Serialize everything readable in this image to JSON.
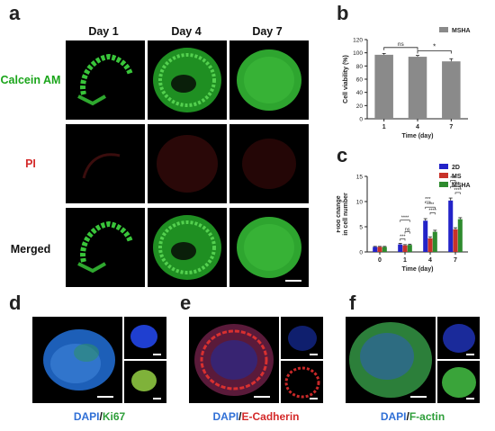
{
  "panels": {
    "a": "a",
    "b": "b",
    "c": "c",
    "d": "d",
    "e": "e",
    "f": "f"
  },
  "panel_a": {
    "days": [
      "Day 1",
      "Day 4",
      "Day 7"
    ],
    "rows": [
      {
        "label": "Calcein AM",
        "color": "#1aa51a"
      },
      {
        "label": "PI",
        "color": "#d42a2a"
      },
      {
        "label": "Merged",
        "color": "#111111"
      }
    ]
  },
  "captions": {
    "d": {
      "part1": "DAPI",
      "sep": "/",
      "part2": "Ki67",
      "color2": "#2e9e3a"
    },
    "e": {
      "part1": "DAPI",
      "sep": "/",
      "part2": "E-Cadherin",
      "color2": "#d42a2a"
    },
    "f": {
      "part1": "DAPI",
      "sep": "/",
      "part2": "F-actin",
      "color2": "#2e9e3a"
    }
  },
  "colors": {
    "dapi": "#2f6fd6",
    "green": "#2e9e3a",
    "red": "#d42a2a"
  },
  "chart_data": [
    {
      "panel": "b",
      "type": "bar",
      "categories": [
        "1",
        "4",
        "7"
      ],
      "series": [
        {
          "name": "MSHA",
          "values": [
            97,
            94,
            87
          ],
          "errors": [
            2,
            2,
            4
          ],
          "color": "#8a8a8a"
        }
      ],
      "xlabel": "Time (day)",
      "ylabel": "Cell viability (%)",
      "ylim": [
        0,
        120
      ],
      "yticks": [
        0,
        20,
        40,
        60,
        80,
        100,
        120
      ],
      "legend": "top-right",
      "annotations": [
        {
          "between": [
            "1",
            "4"
          ],
          "text": "ns"
        },
        {
          "between": [
            "4",
            "7"
          ],
          "text": "*"
        }
      ]
    },
    {
      "panel": "c",
      "type": "bar",
      "categories": [
        "0",
        "1",
        "4",
        "7"
      ],
      "series": [
        {
          "name": "2D",
          "values": [
            1,
            1.5,
            6.2,
            10.2
          ],
          "errors": [
            0.1,
            0.2,
            0.4,
            0.5
          ],
          "color": "#2323c8"
        },
        {
          "name": "MS",
          "values": [
            1,
            1.3,
            2.7,
            4.5
          ],
          "errors": [
            0.1,
            0.15,
            0.3,
            0.3
          ],
          "color": "#c8322a"
        },
        {
          "name": "MSHA",
          "values": [
            1,
            1.4,
            4.0,
            6.5
          ],
          "errors": [
            0.1,
            0.15,
            0.3,
            0.3
          ],
          "color": "#2e8b2e"
        }
      ],
      "xlabel": "Time (day)",
      "ylabel": "Flod change\nin cell number",
      "ylim": [
        0,
        15
      ],
      "yticks": [
        0,
        5,
        10,
        15
      ],
      "legend": "top-right",
      "annotations": [
        "***",
        "ns",
        "****",
        "***",
        "****",
        "****",
        "***",
        "****",
        "****"
      ]
    }
  ]
}
